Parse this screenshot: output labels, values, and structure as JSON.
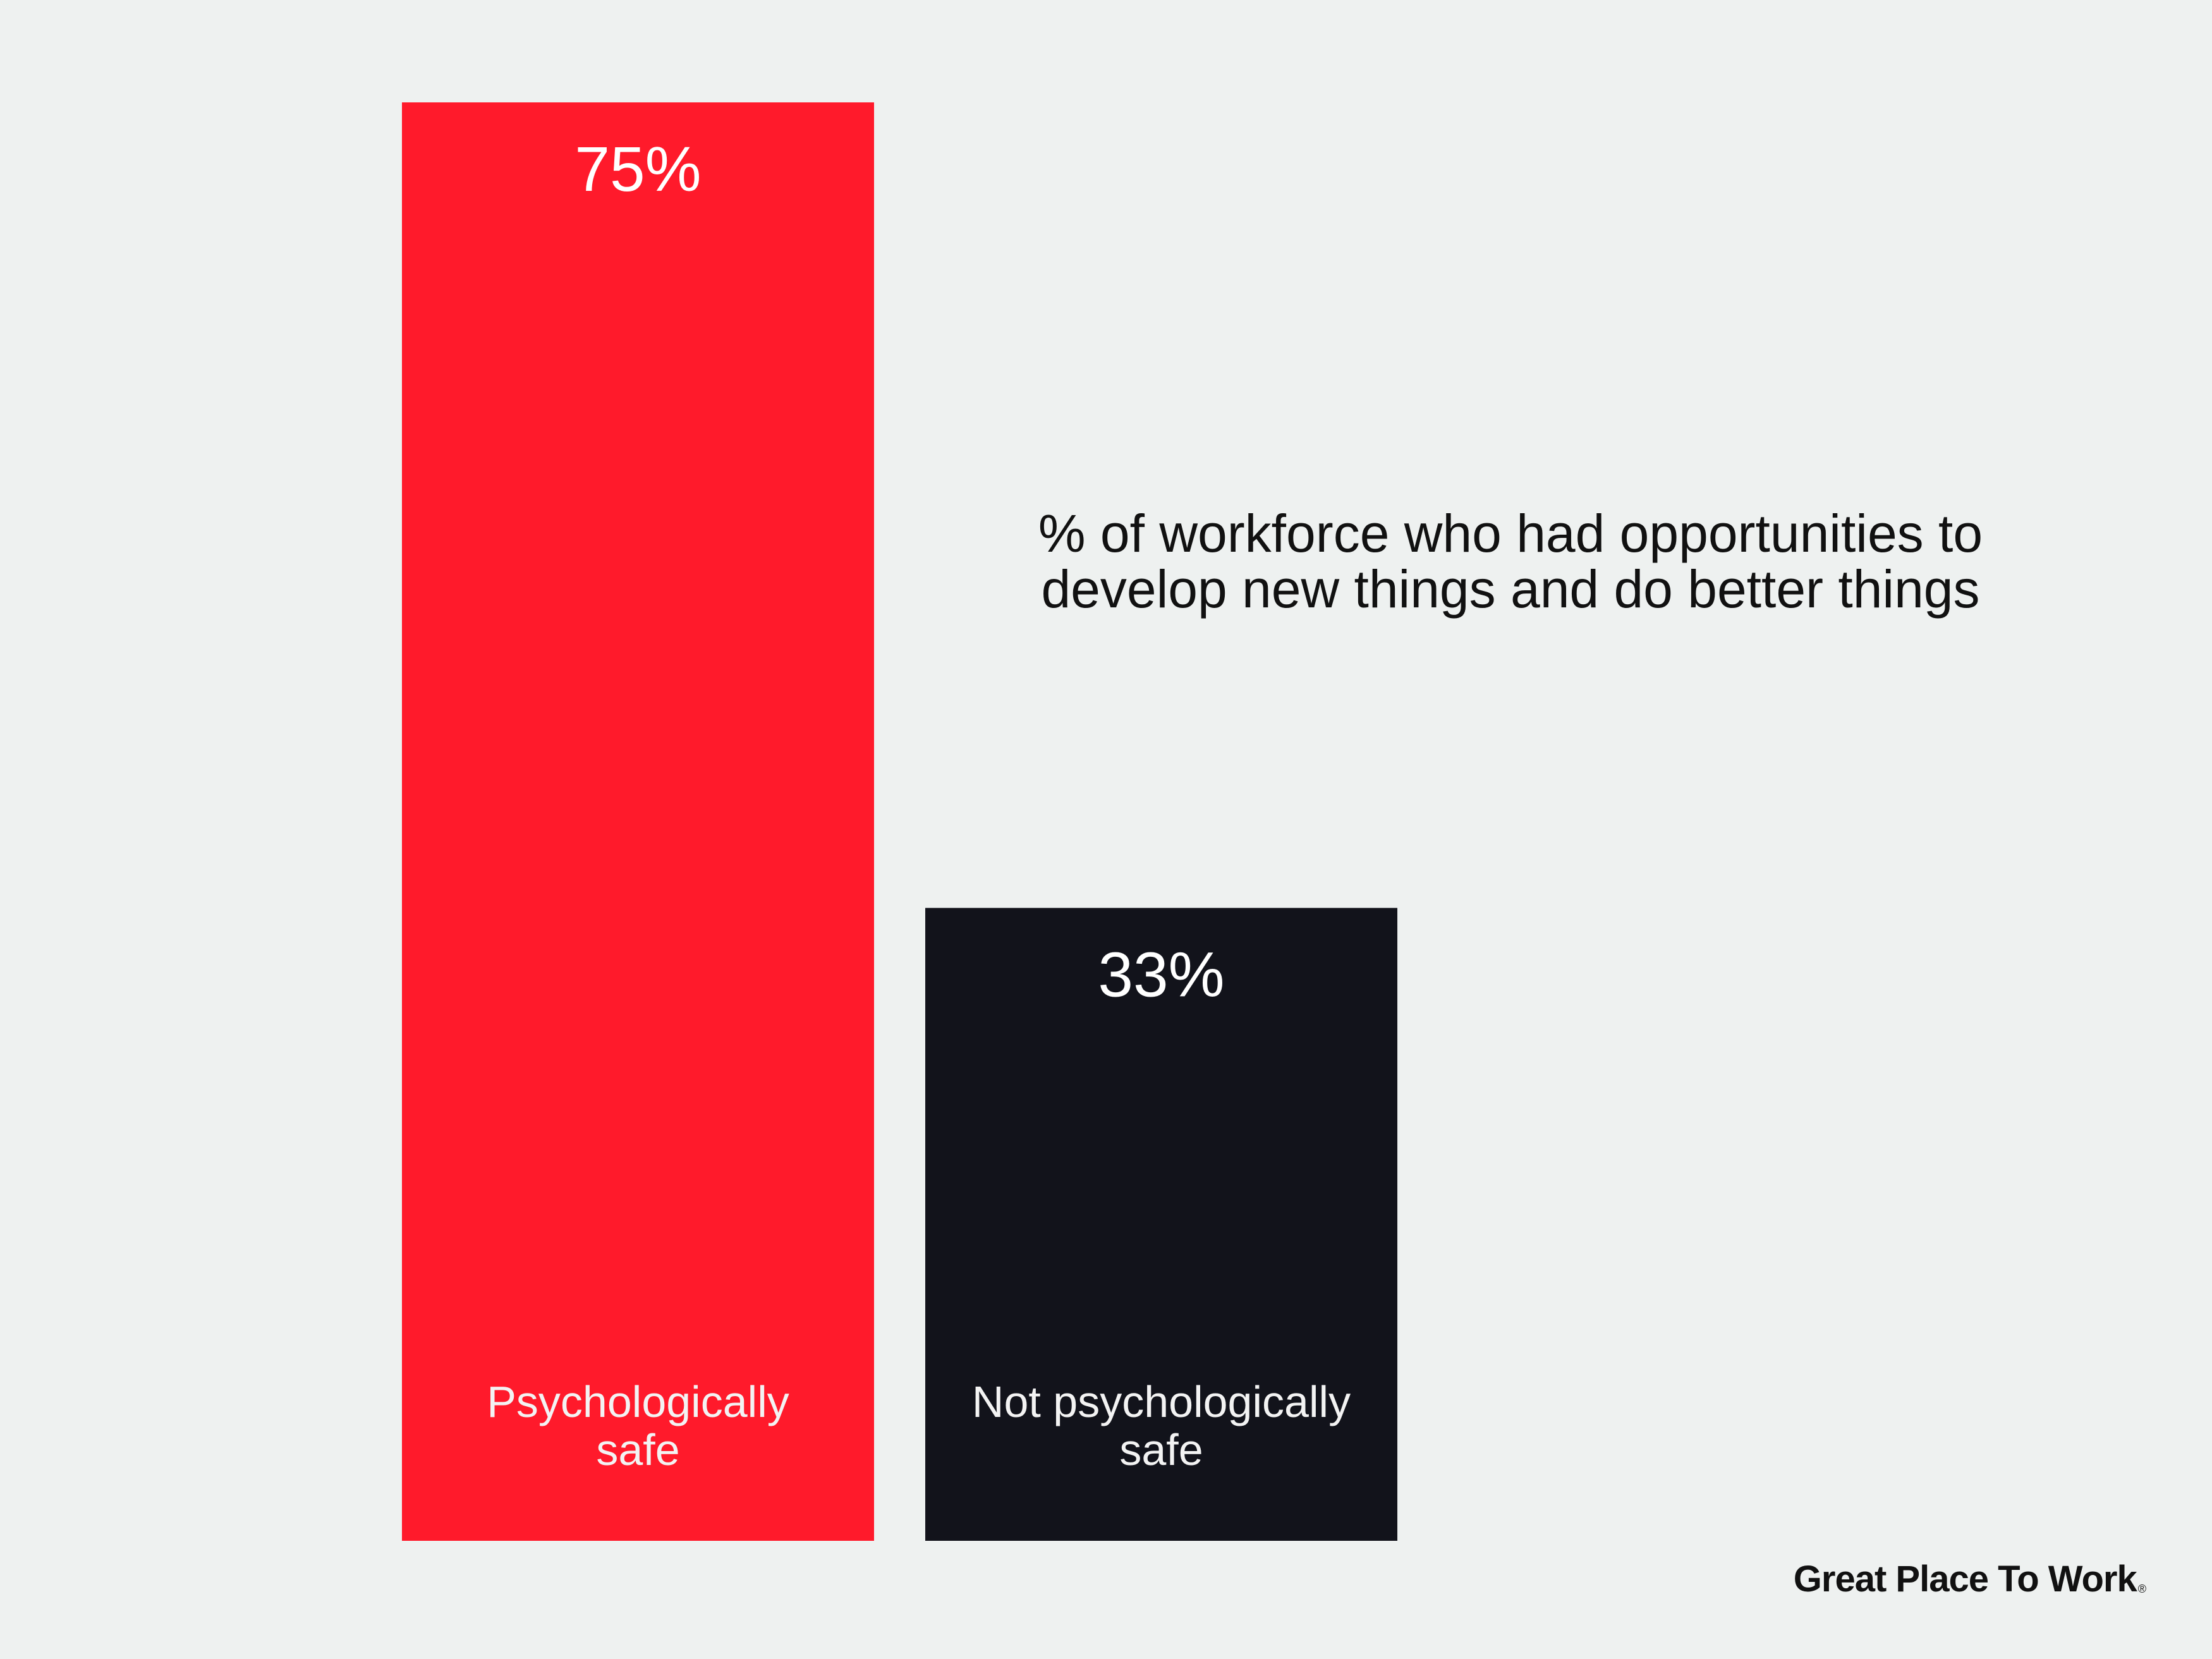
{
  "chart_data": {
    "type": "bar",
    "title_lines": [
      "% of workforce who had opportunities to",
      "develop new things and do better things"
    ],
    "categories": [
      "Psychologically safe",
      "Not psychologically safe"
    ],
    "category_label_lines": [
      [
        "Psychologically",
        "safe"
      ],
      [
        "Not psychologically",
        "safe"
      ]
    ],
    "values": [
      75,
      33
    ],
    "value_labels": [
      "75%",
      "33%"
    ],
    "colors": [
      "#ff1a2b",
      "#12131b"
    ],
    "ylim": [
      0,
      75
    ],
    "grid": false,
    "legend": "none"
  },
  "brand": {
    "name": "Great Place To Work",
    "mark": "®"
  }
}
